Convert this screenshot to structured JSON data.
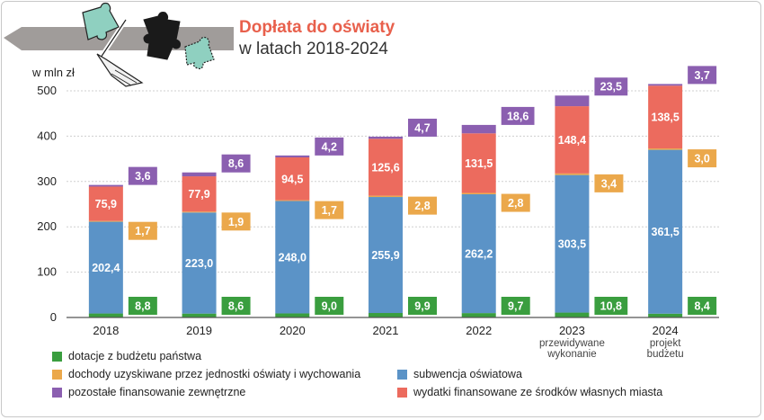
{
  "title": "Dopłata do oświaty",
  "subtitle": "w latach 2018-2024",
  "colors": {
    "title": "#e8604c",
    "axis": "#555555",
    "grid": "#cfcfcf",
    "banner": "#a09c9a",
    "puzzle_teal": "#8fd0c0",
    "puzzle_black": "#1a1a1a"
  },
  "chart_data": {
    "type": "bar",
    "stacked": true,
    "ylabel": "w mln zł",
    "ylim": [
      0,
      500
    ],
    "yticks": [
      "0",
      "100",
      "200",
      "300",
      "400",
      "500"
    ],
    "grid": true,
    "categories": [
      "2018",
      "2019",
      "2020",
      "2021",
      "2022",
      "2023",
      "2024"
    ],
    "category_sublabels": [
      "",
      "",
      "",
      "",
      "",
      "przewidywane wykonanie",
      "projekt budżetu"
    ],
    "series": [
      {
        "key": "dotacje",
        "name": "dotacje z budżetu państwa",
        "color": "#3a9e3f",
        "values": [
          8.8,
          8.6,
          9.0,
          9.9,
          9.7,
          10.8,
          8.4
        ],
        "labels": [
          "8,8",
          "8,6",
          "9,0",
          "9,9",
          "9,7",
          "10,8",
          "8,4"
        ]
      },
      {
        "key": "subwencja",
        "name": "subwencja oświatowa",
        "color": "#5b93c7",
        "values": [
          202.4,
          223.0,
          248.0,
          255.9,
          262.2,
          303.5,
          361.5
        ],
        "labels": [
          "202,4",
          "223,0",
          "248,0",
          "255,9",
          "262,2",
          "303,5",
          "361,5"
        ]
      },
      {
        "key": "dochody",
        "name": "dochody uzyskiwane przez jednostki oświaty i wychowania",
        "color": "#eba84b",
        "values": [
          1.7,
          1.9,
          1.7,
          2.8,
          2.8,
          3.4,
          3.0
        ],
        "labels": [
          "1,7",
          "1,9",
          "1,7",
          "2,8",
          "2,8",
          "3,4",
          "3,0"
        ]
      },
      {
        "key": "wydatki",
        "name": "wydatki finansowane ze środków własnych miasta",
        "color": "#ec6b5e",
        "values": [
          75.9,
          77.9,
          94.5,
          125.6,
          131.5,
          148.4,
          138.5
        ],
        "labels": [
          "75,9",
          "77,9",
          "94,5",
          "125,6",
          "131,5",
          "148,4",
          "138,5"
        ]
      },
      {
        "key": "pozostale",
        "name": "pozostałe finansowanie zewnętrzne",
        "color": "#8b5fb0",
        "values": [
          3.6,
          8.6,
          4.2,
          4.7,
          18.6,
          23.5,
          3.7
        ],
        "labels": [
          "3,6",
          "8,6",
          "4,2",
          "4,7",
          "18,6",
          "23,5",
          "3,7"
        ]
      }
    ],
    "legend": [
      {
        "name": "dotacje z budżetu państwa",
        "color": "#3a9e3f"
      },
      {
        "name": "dochody uzyskiwane przez jednostki oświaty i wychowania",
        "color": "#eba84b"
      },
      {
        "name": "pozostałe finansowanie zewnętrzne",
        "color": "#8b5fb0"
      },
      {
        "name": "subwencja oświatowa",
        "color": "#5b93c7"
      },
      {
        "name": "wydatki finansowane ze środków własnych miasta",
        "color": "#ec6b5e"
      }
    ],
    "legend_position": "bottom"
  }
}
